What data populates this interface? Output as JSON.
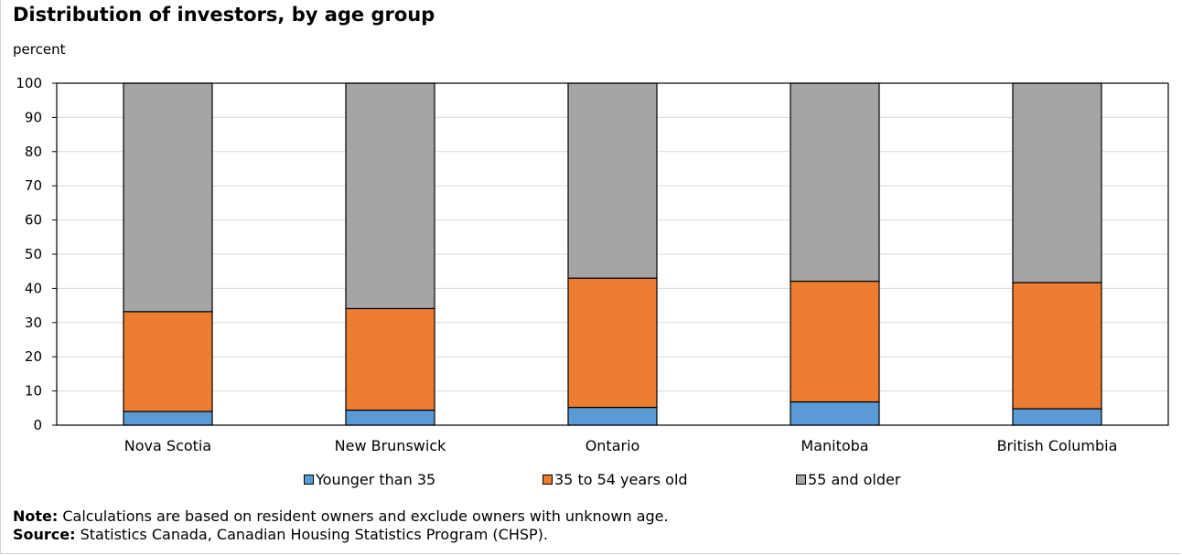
{
  "chart_data": {
    "type": "bar",
    "stacked": true,
    "title": "Distribution  of investors, by age group",
    "ylabel": "percent",
    "xlabel": "",
    "ylim": [
      0,
      100
    ],
    "yticks": [
      0,
      10,
      20,
      30,
      40,
      50,
      60,
      70,
      80,
      90,
      100
    ],
    "grid": true,
    "legend_position": "bottom",
    "categories": [
      "Nova Scotia",
      "New Brunswick",
      "Ontario",
      "Manitoba",
      "British Columbia"
    ],
    "series": [
      {
        "name": "Younger than 35",
        "color": "#5b9bd5",
        "values": [
          4.0,
          4.4,
          5.2,
          6.8,
          4.8
        ]
      },
      {
        "name": "35 to 54 years old",
        "color": "#ed7d31",
        "values": [
          29.2,
          29.7,
          37.8,
          35.3,
          36.9
        ]
      },
      {
        "name": "55 and older",
        "color": "#a5a5a5",
        "values": [
          66.8,
          65.9,
          57.0,
          57.9,
          58.3
        ]
      }
    ]
  },
  "notes": {
    "note_label": "Note:",
    "note_text": " Calculations are based on resident owners and exclude owners with  unknown age.",
    "source_label": "Source:",
    "source_text": " Statistics Canada, Canadian Housing Statistics Program (CHSP)."
  }
}
